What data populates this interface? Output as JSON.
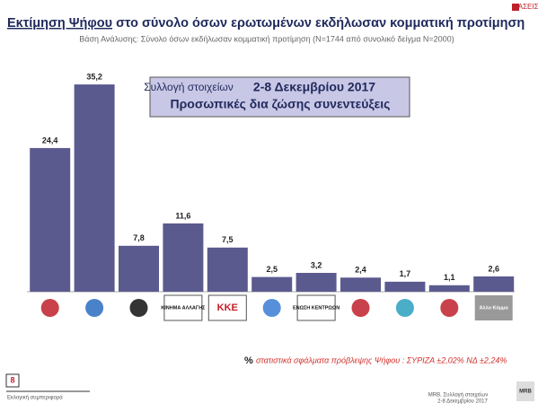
{
  "chart_data": {
    "type": "bar",
    "title": [
      "Εκτίμηση Ψήφου",
      "στο σύνολο όσων ερωτωμένων εκδήλωσαν κομματική προτίμηση"
    ],
    "subtitle": "Βάση Ανάλυσης: Σύνολο όσων εκδήλωσαν κομματική προτίμηση (Ν=1744 από συνολικό δείγμα Ν=2000)",
    "annotations": [
      "Συλλογή στοιχείων",
      "2-8 Δεκεμβρίου 2017",
      "Προσωπικές δια ζώσης συνεντεύξεις"
    ],
    "categories": [
      null,
      null,
      null,
      "ΚΙΝΗΜΑ ΑΛΛΑΓΗΣ",
      "ΚΚΕ",
      null,
      "ΕΝΩΣΗ ΚΕΝΤΡΩΩΝ",
      null,
      null,
      null,
      "Άλλο Κόμμα"
    ],
    "values": [
      24.4,
      35.2,
      7.8,
      11.6,
      7.5,
      2.5,
      3.2,
      2.4,
      1.7,
      1.1,
      2.6
    ],
    "value_labels": [
      "24,4",
      "35,2",
      "7,8",
      "11,6",
      "7,5",
      "2,5",
      "3,2",
      "2,4",
      "1,7",
      "1,1",
      "2,6"
    ],
    "color": "#5b5a8f",
    "footnote": [
      "%",
      "στατιστικά σφάλματα πρόβλεψης Ψήφου : ΣΥΡΙΖΑ ±2,02% ΝΔ ±2,24%"
    ]
  },
  "page": {
    "number": "8",
    "section": "Εκλογική συμπεριφορά",
    "source": [
      "MRB, Συλλογή στοιχείων",
      "2-8 Δεκεμβρίου 2017"
    ],
    "brand": "ΤΑΣΕΙΣ",
    "company": "MRB"
  }
}
